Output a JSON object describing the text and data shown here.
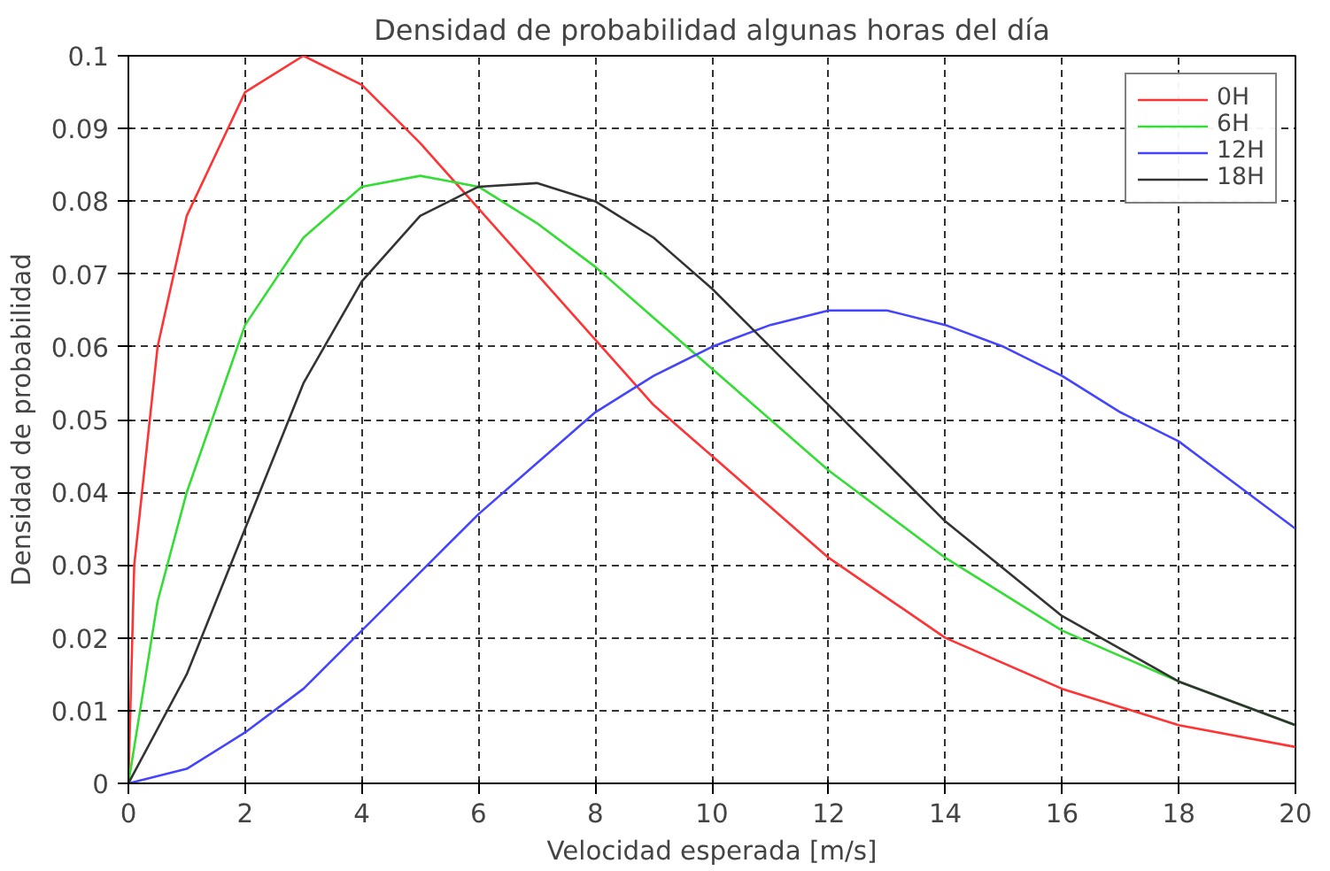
{
  "chart_data": {
    "type": "line",
    "title": "Densidad de probabilidad algunas horas del día",
    "xlabel": "Velocidad esperada [m/s]",
    "ylabel": "Densidad de probabilidad",
    "xlim": [
      0,
      20
    ],
    "ylim": [
      0,
      0.1
    ],
    "xticks": [
      0,
      2,
      4,
      6,
      8,
      10,
      12,
      14,
      16,
      18,
      20
    ],
    "yticks": [
      0,
      0.01,
      0.02,
      0.03,
      0.04,
      0.05,
      0.06,
      0.07,
      0.08,
      0.09,
      0.1
    ],
    "grid": true,
    "legend": "top right",
    "marker": "none",
    "line_style": "solid",
    "series": [
      {
        "name": "0H",
        "color": "#ff3333",
        "x": [
          0,
          0.1,
          0.5,
          1,
          2,
          3,
          4,
          5,
          6,
          7,
          8,
          9,
          10,
          12,
          14,
          16,
          18,
          20
        ],
        "values": [
          0,
          0.03,
          0.06,
          0.078,
          0.095,
          0.1,
          0.096,
          0.088,
          0.079,
          0.07,
          0.061,
          0.052,
          0.045,
          0.031,
          0.02,
          0.013,
          0.008,
          0.005
        ]
      },
      {
        "name": "6H",
        "color": "#33dd33",
        "x": [
          0,
          0.5,
          1,
          2,
          3,
          4,
          5,
          6,
          7,
          8,
          9,
          10,
          12,
          14,
          16,
          18,
          20
        ],
        "values": [
          0,
          0.025,
          0.04,
          0.063,
          0.075,
          0.082,
          0.0835,
          0.082,
          0.077,
          0.071,
          0.064,
          0.057,
          0.043,
          0.031,
          0.021,
          0.014,
          0.008
        ]
      },
      {
        "name": "12H",
        "color": "#4444ff",
        "x": [
          0,
          1,
          2,
          3,
          4,
          5,
          6,
          7,
          8,
          9,
          10,
          11,
          12,
          13,
          14,
          15,
          16,
          17,
          18,
          19,
          20
        ],
        "values": [
          0,
          0.002,
          0.007,
          0.013,
          0.021,
          0.029,
          0.037,
          0.044,
          0.051,
          0.056,
          0.06,
          0.063,
          0.065,
          0.065,
          0.063,
          0.06,
          0.056,
          0.051,
          0.047,
          0.041,
          0.035
        ]
      },
      {
        "name": "18H",
        "color": "#333333",
        "x": [
          0,
          1,
          2,
          3,
          4,
          5,
          6,
          7,
          8,
          9,
          10,
          11,
          12,
          14,
          16,
          18,
          20
        ],
        "values": [
          0,
          0.015,
          0.035,
          0.055,
          0.069,
          0.078,
          0.082,
          0.0825,
          0.08,
          0.075,
          0.068,
          0.06,
          0.052,
          0.036,
          0.023,
          0.014,
          0.008
        ]
      }
    ]
  }
}
